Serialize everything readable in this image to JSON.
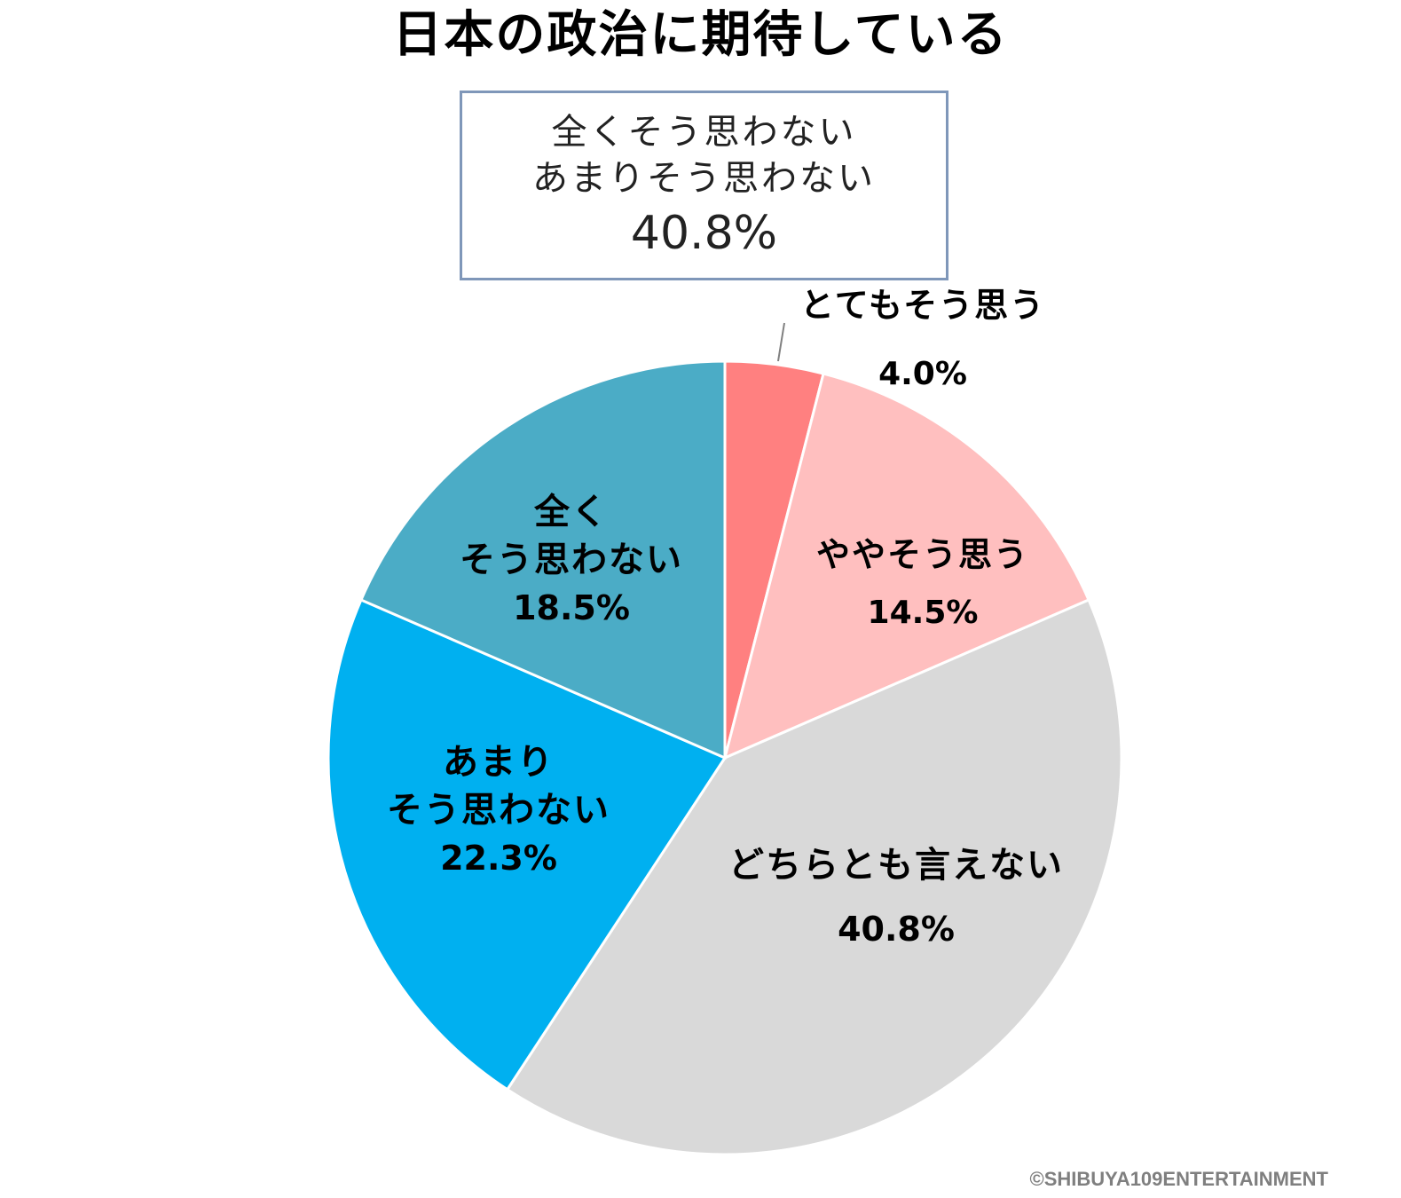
{
  "chart_data": {
    "type": "pie",
    "title": "日本の政治に期待している",
    "start_angle_deg": 0,
    "direction": "clockwise",
    "slices": [
      {
        "label": "とてもそう思う",
        "label_lines": [
          "とてもそう思う"
        ],
        "value": 4.0,
        "value_label": "4.0%",
        "color": "#ff8080"
      },
      {
        "label": "ややそう思う",
        "label_lines": [
          "ややそう思う"
        ],
        "value": 14.5,
        "value_label": "14.5%",
        "color": "#ffbfbf"
      },
      {
        "label": "どちらとも言えない",
        "label_lines": [
          "どちらとも言えない"
        ],
        "value": 40.8,
        "value_label": "40.8%",
        "color": "#d9d9d9"
      },
      {
        "label": "あまりそう思わない",
        "label_lines": [
          "あまり",
          "そう思わない"
        ],
        "value": 22.3,
        "value_label": "22.3%",
        "color": "#00b0f0"
      },
      {
        "label": "全くそう思わない",
        "label_lines": [
          "全く",
          "そう思わない"
        ],
        "value": 18.5,
        "value_label": "18.5%",
        "color": "#4bacc6"
      }
    ],
    "callout": {
      "line1": "全くそう思わない",
      "line2": "あまりそう思わない",
      "value": "40.8%"
    }
  },
  "copyright": "©SHIBUYA109ENTERTAINMENT"
}
